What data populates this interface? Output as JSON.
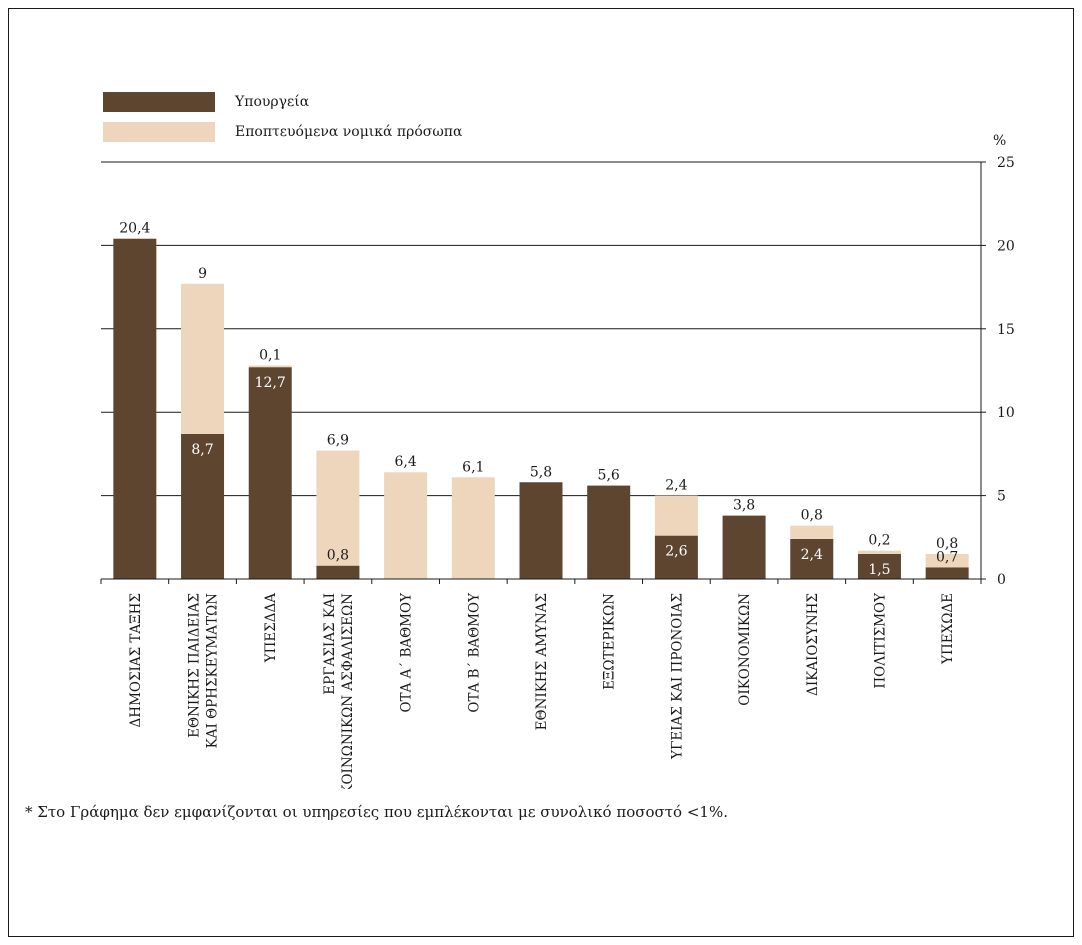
{
  "chart_data": {
    "type": "bar",
    "stacked": true,
    "y_unit": "%",
    "ylim": [
      0,
      25
    ],
    "y_ticks": [
      0,
      5,
      10,
      15,
      20,
      25
    ],
    "grid": true,
    "legend_position": "top-left",
    "categories": [
      [
        "ΔΗΜΟΣΙΑΣ ΤΑΞΗΣ"
      ],
      [
        "ΕΘΝΙΚΗΣ ΠΑΙΔΕΙΑΣ",
        "ΚΑΙ ΘΡΗΣΚΕΥΜΑΤΩΝ"
      ],
      [
        "ΥΠΕΣΔΔΑ"
      ],
      [
        "ΕΡΓΑΣΙΑΣ ΚΑΙ",
        "ΚΟΙΝΩΝΙΚΩΝ ΑΣΦΑΛΙΣΕΩΝ"
      ],
      [
        "ΟΤΑ Α΄ ΒΑΘΜΟΥ"
      ],
      [
        "ΟΤΑ Β΄ ΒΑΘΜΟΥ"
      ],
      [
        "ΕΘΝΙΚΗΣ ΑΜΥΝΑΣ"
      ],
      [
        "ΕΞΩΤΕΡΙΚΩΝ"
      ],
      [
        "ΥΓΕΙΑΣ ΚΑΙ ΠΡΟΝΟΙΑΣ"
      ],
      [
        "ΟΙΚΟΝΟΜΙΚΩΝ"
      ],
      [
        "ΔΙΚΑΙΟΣΥΝΗΣ"
      ],
      [
        "ΠΟΛΙΤΙΣΜΟΥ"
      ],
      [
        "ΥΠΕΧΩΔΕ"
      ]
    ],
    "series": [
      {
        "name": "Υπουργεία",
        "color": "#5e4530",
        "values": [
          20.4,
          8.7,
          12.7,
          0.8,
          null,
          null,
          5.8,
          5.6,
          2.6,
          3.8,
          2.4,
          1.5,
          0.7
        ],
        "labels": [
          "20,4",
          "8,7",
          "12,7",
          "0,8",
          "",
          "",
          "5,8",
          "5,6",
          "2,6",
          "3,8",
          "2,4",
          "1,5",
          "0,7"
        ]
      },
      {
        "name": "Εποπτευόμενα νομικά πρόσωπα",
        "color": "#eed6bd",
        "values": [
          null,
          9,
          0.1,
          6.9,
          6.4,
          6.1,
          null,
          null,
          2.4,
          null,
          0.8,
          0.2,
          0.8
        ],
        "labels": [
          "",
          "9",
          "0,1",
          "6,9",
          "6,4",
          "6,1",
          "",
          "",
          "2,4",
          "",
          "0,8",
          "0,2",
          "0,8"
        ]
      }
    ],
    "footnote": "* Στο Γράφημα δεν εμφανίζονται οι υπηρεσίες που εμπλέκονται με συνολικό ποσοστό <1%."
  }
}
